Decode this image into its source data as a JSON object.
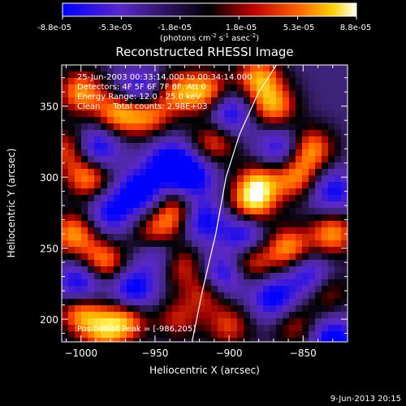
{
  "colorbar": {
    "ticks": [
      "-8.8e-05",
      "-5.3e-05",
      "-1.8e-05",
      "1.8e-05",
      "5.3e-05",
      "8.8e-05"
    ],
    "units_main": "(photons cm",
    "units_sup1": "-2",
    "units_mid": " s",
    "units_sup2": "-1",
    "units_tail": " asec",
    "units_sup3": "-2",
    "units_close": ")",
    "colormap": "blue-purple-black-red-orange-yellow-white"
  },
  "chart_data": {
    "type": "heatmap",
    "title": "Reconstructed RHESSI Image",
    "xlabel": "Heliocentric X (arcsec)",
    "ylabel": "Heliocentric Y (arcsec)",
    "xlim": [
      -1013,
      -820
    ],
    "ylim": [
      184,
      379
    ],
    "xticks": [
      -1000,
      -950,
      -900,
      -850
    ],
    "xtick_labels": [
      "−1000",
      "−950",
      "−900",
      "−850"
    ],
    "yticks": [
      200,
      250,
      300,
      350
    ],
    "ytick_labels": [
      "200",
      "250",
      "300",
      "350"
    ],
    "limb_curve": [
      [
        -925,
        184
      ],
      [
        -918,
        220
      ],
      [
        -909,
        260
      ],
      [
        -902,
        300
      ],
      [
        -893,
        330
      ],
      [
        -880,
        360
      ],
      [
        -868,
        379
      ]
    ],
    "blobs": [
      [
        -995,
        300,
        1
      ],
      [
        -1005,
        260,
        1
      ],
      [
        -985,
        240,
        1
      ],
      [
        -1000,
        360,
        1
      ],
      [
        -975,
        345,
        1
      ],
      [
        -955,
        345,
        1
      ],
      [
        -950,
        260,
        0.8
      ],
      [
        -935,
        275,
        1
      ],
      [
        -935,
        240,
        1
      ],
      [
        -915,
        220,
        0.8
      ],
      [
        -900,
        195,
        0.7
      ],
      [
        -880,
        295,
        1
      ],
      [
        -885,
        280,
        1
      ],
      [
        -855,
        300,
        0.9
      ],
      [
        -845,
        320,
        1
      ],
      [
        -870,
        350,
        1
      ],
      [
        -915,
        360,
        1
      ],
      [
        -880,
        370,
        1
      ],
      [
        -935,
        360,
        0.8
      ],
      [
        -860,
        250,
        1
      ],
      [
        -830,
        260,
        1
      ],
      [
        -885,
        240,
        0.8
      ],
      [
        -910,
        325,
        0.8
      ],
      [
        -1000,
        205,
        1
      ],
      [
        -970,
        200,
        1
      ],
      [
        -985,
        190,
        0.8
      ],
      [
        -935,
        200,
        0.6
      ],
      [
        -855,
        195,
        0.6
      ],
      [
        -835,
        220,
        0.7
      ],
      [
        -1008,
        320,
        0.8
      ],
      [
        -960,
        290,
        -1
      ],
      [
        -940,
        310,
        -1
      ],
      [
        -965,
        220,
        -1
      ],
      [
        -945,
        245,
        -1
      ],
      [
        -920,
        270,
        -1
      ],
      [
        -905,
        230,
        -1
      ],
      [
        -990,
        320,
        -1
      ],
      [
        -1000,
        225,
        -1
      ],
      [
        -960,
        360,
        -0.9
      ],
      [
        -890,
        260,
        -0.9
      ],
      [
        -870,
        215,
        -0.9
      ],
      [
        -845,
        230,
        -0.9
      ],
      [
        -830,
        185,
        -1
      ],
      [
        -900,
        345,
        -0.9
      ],
      [
        -925,
        300,
        -0.9
      ],
      [
        -865,
        320,
        -0.8
      ],
      [
        -830,
        290,
        -0.8
      ],
      [
        -980,
        275,
        -0.8
      ]
    ]
  },
  "annotations": {
    "line1": "25-Jun-2003 00:33:14.000 to 00:34:14.000",
    "line2": "Detectors: 4F 5F 6F 7F 8F, Att 0",
    "line3": "Energy Range: 12.0 - 25.0 keV",
    "line4": "Clean     Total counts: 2.98E+03",
    "peak": "Position of Peak = [-986,205]"
  },
  "timestamp": "9-Jun-2013 20:15"
}
